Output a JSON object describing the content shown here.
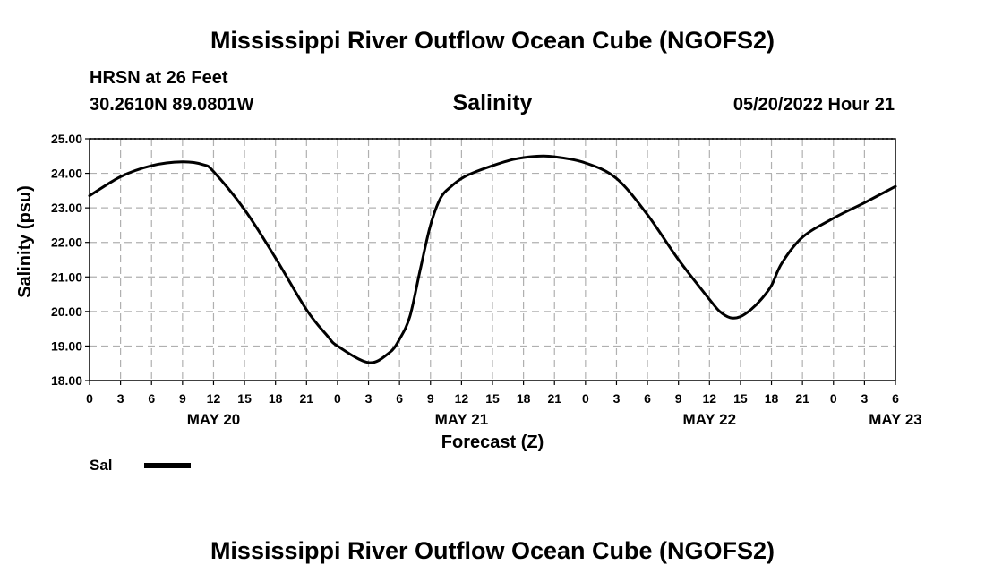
{
  "header": {
    "title": "Mississippi River Outflow Ocean Cube (NGOFS2)",
    "station": "HRSN at 26 Feet",
    "coords": "30.2610N  89.0801W",
    "timestamp": "05/20/2022 Hour 21"
  },
  "footer": {
    "title": "Mississippi River Outflow Ocean Cube (NGOFS2)"
  },
  "legend": {
    "label": "Sal"
  },
  "chart_data": {
    "type": "line",
    "title": "Salinity",
    "xlabel": "Forecast (Z)",
    "ylabel": "Salinity (psu)",
    "ylim": [
      18.0,
      25.0
    ],
    "xlim_hours": [
      0,
      78
    ],
    "grid": true,
    "y_ticks": [
      "18.00",
      "19.00",
      "20.00",
      "21.00",
      "22.00",
      "23.00",
      "24.00",
      "25.00"
    ],
    "x_tick_labels": [
      "0",
      "3",
      "6",
      "9",
      "12",
      "15",
      "18",
      "21",
      "0",
      "3",
      "6",
      "9",
      "12",
      "15",
      "18",
      "21",
      "0",
      "3",
      "6",
      "9",
      "12",
      "15",
      "18",
      "21",
      "0",
      "3",
      "6"
    ],
    "date_labels": [
      {
        "hour": 12,
        "label": "MAY 20"
      },
      {
        "hour": 36,
        "label": "MAY 21"
      },
      {
        "hour": 60,
        "label": "MAY 22"
      },
      {
        "hour": 78,
        "label": "MAY 23"
      }
    ],
    "series": [
      {
        "name": "Sal",
        "color": "#000000",
        "x_hours": [
          0,
          3,
          6,
          9,
          11,
          12,
          15,
          18,
          21,
          23,
          24,
          27,
          29,
          30,
          31,
          32,
          33,
          34,
          35,
          36,
          37,
          39,
          41,
          43,
          45,
          48,
          51,
          54,
          57,
          60,
          61,
          62,
          63,
          64,
          65,
          66,
          67,
          69,
          72,
          75,
          78
        ],
        "values": [
          23.35,
          23.9,
          24.22,
          24.33,
          24.25,
          24.05,
          22.95,
          21.55,
          20.05,
          19.3,
          19.0,
          18.52,
          18.8,
          19.2,
          19.85,
          21.2,
          22.5,
          23.3,
          23.62,
          23.85,
          24.0,
          24.22,
          24.4,
          24.49,
          24.48,
          24.3,
          23.85,
          22.8,
          21.5,
          20.35,
          20.0,
          19.82,
          19.85,
          20.05,
          20.35,
          20.75,
          21.4,
          22.15,
          22.7,
          23.15,
          23.62
        ]
      }
    ]
  }
}
